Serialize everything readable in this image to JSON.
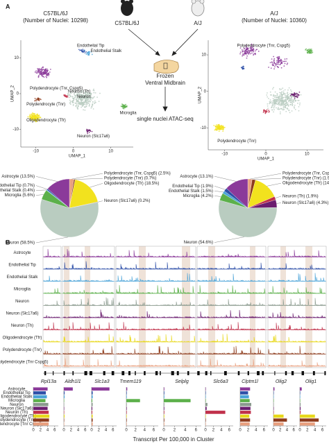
{
  "panel_a": {
    "label": "A",
    "strains": [
      {
        "name": "C57BL/6J",
        "nuclei": "(Number of Nuclei: 10298)",
        "icon_label": "C57BL/6J"
      },
      {
        "name": "A/J",
        "nuclei": "(Number of Nuclei: 10360)",
        "icon_label": "A/J"
      }
    ],
    "tissue": [
      "Frozen",
      "Ventral Midbrain"
    ],
    "assay": "single nuclei ATAC-seq",
    "umaps": [
      {
        "x_label": "UMAP_1",
        "y_label": "UMAP_2",
        "xlim": [
          -14,
          16
        ],
        "ylim": [
          -15,
          15
        ],
        "xticks": [
          -10,
          0,
          10
        ],
        "yticks": [
          10,
          0,
          -10
        ],
        "clusters": [
          "Endothelial Tip",
          "Endothelial Stalk",
          "Polydendrocyte (Tnr, Cspg5)",
          "Polydendrocyte (Tnr)",
          "Oligodendrocyte (Tfr)",
          "Neuron (Th)",
          "Neuron",
          "Microglia",
          "Neuron (Slc17a6)"
        ]
      },
      {
        "x_label": "UMAP_1",
        "y_label": "UMAP_2",
        "xlim": [
          -14,
          14
        ],
        "ylim": [
          -16,
          14
        ],
        "xticks": [
          -10,
          0,
          10
        ],
        "yticks": [
          10,
          0,
          -10
        ],
        "clusters": [
          "Polydendrocyte (Tnr, Cspg5)",
          "Polydendrocyte (Tnr)"
        ]
      }
    ],
    "pies": [
      {
        "slices": [
          {
            "label": "Polydendrocyte (Tnr, Cspg5) (2.5%)",
            "value": 2.5,
            "color": "#e9a07f"
          },
          {
            "label": "Polydendrocyte (Tnr) (0.7%)",
            "value": 0.7,
            "color": "#8e3b1c"
          },
          {
            "label": "Oligodendrocyte (Tfr) (18.5%)",
            "value": 18.5,
            "color": "#f2e21e"
          },
          {
            "label": "Neuron (Slc17a6) (0.2%)",
            "value": 0.2,
            "color": "#6b1d6f"
          },
          {
            "label": "Neuron (58.5%)",
            "value": 58.5,
            "color": "#b9ccc0"
          },
          {
            "label": "Microglia (5.6%)",
            "value": 5.6,
            "color": "#5cb04b"
          },
          {
            "label": "Endothelial Stalk (0.4%)",
            "value": 0.4,
            "color": "#4aa3d8"
          },
          {
            "label": "Endothelial Tip (0.7%)",
            "value": 0.7,
            "color": "#2d4fa8"
          },
          {
            "label": "Astrocyte (13.5%)",
            "value": 13.5,
            "color": "#8b3a9a"
          }
        ]
      },
      {
        "slices": [
          {
            "label": "Polydendrocyte (Tnr, Cspg5) (2.4%)",
            "value": 2.4,
            "color": "#e9a07f"
          },
          {
            "label": "Polydendrocyte (Tnr) (1.9%)",
            "value": 1.9,
            "color": "#8e3b1c"
          },
          {
            "label": "Oligodendrocyte (Tfr) (14.2%)",
            "value": 14.2,
            "color": "#f2e21e"
          },
          {
            "label": "Neuron (Th) (1.9%)",
            "value": 1.9,
            "color": "#c0304a"
          },
          {
            "label": "Neuron (Slc17a6) (4.3%)",
            "value": 4.3,
            "color": "#6b1d6f"
          },
          {
            "label": "Neuron (54.6%)",
            "value": 54.6,
            "color": "#b9ccc0"
          },
          {
            "label": "Microglia (4.2%)",
            "value": 4.2,
            "color": "#5cb04b"
          },
          {
            "label": "Endothelial Stalk (1.5%)",
            "value": 1.5,
            "color": "#4aa3d8"
          },
          {
            "label": "Endothelial Tip (1.9%)",
            "value": 1.9,
            "color": "#2d4fa8"
          },
          {
            "label": "Astrocyte (13.1%)",
            "value": 13.1,
            "color": "#8b3a9a"
          }
        ]
      }
    ]
  },
  "panel_b": {
    "label": "B",
    "cell_types": [
      {
        "name": "Astrocyte",
        "color": "#8b3a9a"
      },
      {
        "name": "Endothelial Tip",
        "color": "#2d4fa8"
      },
      {
        "name": "Endothelial Stalk",
        "color": "#4aa3d8"
      },
      {
        "name": "Microglia",
        "color": "#5cb04b"
      },
      {
        "name": "Neuron",
        "color": "#8a9a8e"
      },
      {
        "name": "Neuron (Slc17a6)",
        "color": "#6b1d6f"
      },
      {
        "name": "Neuron (Th)",
        "color": "#c0304a"
      },
      {
        "name": "Oligodendrocyte (Tfr)",
        "color": "#e8d81a"
      },
      {
        "name": "Polydendrocyte (Tnr)",
        "color": "#8e3b1c"
      },
      {
        "name": "Polydendrocyte (Tnr Cspg5)",
        "color": "#e9a07f"
      }
    ],
    "genes": [
      {
        "name": "Rpl13a",
        "values": [
          4,
          3.5,
          3.8,
          3.4,
          4.2,
          4,
          4.3,
          4.5,
          4.4,
          4.3
        ]
      },
      {
        "name": "Aldh1l1",
        "values": [
          2.5,
          0.2,
          0.2,
          0.1,
          0.1,
          0.1,
          0.1,
          0.2,
          0.1,
          0.1
        ]
      },
      {
        "name": "Slc1a3",
        "values": [
          5,
          0.3,
          0.3,
          0.2,
          0.3,
          0.2,
          0.2,
          0.3,
          0.3,
          0.3
        ]
      },
      {
        "name": "Tmem119",
        "values": [
          0.2,
          0.1,
          0.1,
          3,
          0.1,
          0.1,
          0.1,
          0.1,
          0.1,
          0.1
        ]
      },
      {
        "name": "Selplg",
        "values": [
          0.1,
          0.1,
          0.1,
          5,
          0.1,
          0.1,
          0.1,
          0.1,
          0.1,
          0.1
        ]
      },
      {
        "name": "Slc6a3",
        "values": [
          0.1,
          0.1,
          0.1,
          0.1,
          0.5,
          0.3,
          5,
          0.1,
          0.1,
          0.1
        ]
      },
      {
        "name": "Clptm1l",
        "values": [
          2.5,
          2,
          2.2,
          2.4,
          2.8,
          2.6,
          2.7,
          2.3,
          2.5,
          2.4
        ]
      },
      {
        "name": "Olig2",
        "values": [
          0.3,
          0.1,
          0.1,
          0.1,
          0.1,
          0.1,
          0.1,
          3,
          4,
          3
        ]
      },
      {
        "name": "Olig1",
        "values": [
          0.5,
          0.1,
          0.1,
          0.1,
          0.2,
          0.2,
          0.2,
          4,
          5,
          4
        ]
      }
    ],
    "xlim": [
      0,
      7
    ],
    "xticks": [
      0,
      2,
      4,
      6
    ],
    "x_label": "Transcript Per 100,000 in Cluster"
  }
}
